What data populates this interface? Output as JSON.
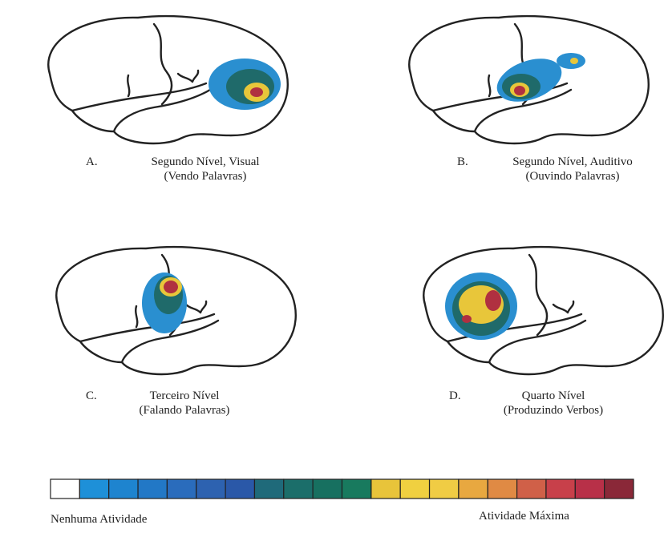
{
  "panels": [
    {
      "letter": "A.",
      "title": "Segundo Nível, Visual",
      "subtitle": "(Vendo Palavras)"
    },
    {
      "letter": "B.",
      "title": "Segundo Nível, Auditivo",
      "subtitle": "(Ouvindo Palavras)"
    },
    {
      "letter": "C.",
      "title": "Terceiro Nível",
      "subtitle": "(Falando Palavras)"
    },
    {
      "letter": "D.",
      "title": "Quarto Nível",
      "subtitle": "(Produzindo Verbos)"
    }
  ],
  "scale": {
    "min_label": "Nenhuma Atividade",
    "max_label": "Atividade Máxima"
  }
}
